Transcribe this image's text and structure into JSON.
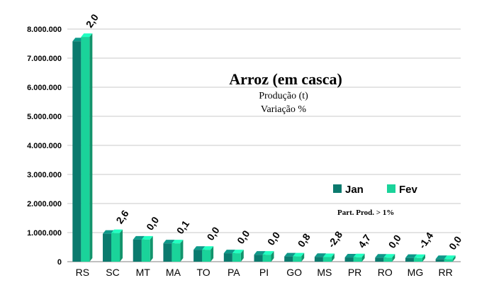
{
  "chart_data": {
    "type": "bar",
    "title": "Arroz (em casca)",
    "subtitle_lines": [
      "Produção (t)",
      "Variação %"
    ],
    "note": "Part. Prod. > 1%",
    "categories": [
      "RS",
      "SC",
      "MT",
      "MA",
      "TO",
      "PA",
      "PI",
      "GO",
      "MS",
      "PR",
      "RO",
      "MG",
      "RR"
    ],
    "series": [
      {
        "name": "Jan",
        "color": "#0b7a6e",
        "values": [
          7580000,
          960000,
          760000,
          630000,
          410000,
          290000,
          240000,
          180000,
          165000,
          145000,
          140000,
          130000,
          90000
        ]
      },
      {
        "name": "Fev",
        "color": "#1ad39a",
        "values": [
          7730000,
          985000,
          760000,
          630000,
          410000,
          290000,
          240000,
          181000,
          160000,
          152000,
          140000,
          128000,
          90000
        ]
      }
    ],
    "variation_labels": [
      "2,0",
      "2,6",
      "0,0",
      "0,1",
      "0,0",
      "0,0",
      "0,0",
      "0,8",
      "-2,8",
      "4,7",
      "0,0",
      "-1,4",
      "0,0"
    ],
    "y_ticks": [
      0,
      1000000,
      2000000,
      3000000,
      4000000,
      5000000,
      6000000,
      7000000,
      8000000
    ],
    "y_tick_labels": [
      "0",
      "1.000.000",
      "2.000.000",
      "3.000.000",
      "4.000.000",
      "5.000.000",
      "6.000.000",
      "7.000.000",
      "8.000.000"
    ],
    "ylim": [
      0,
      8000000
    ],
    "grid": true,
    "legend_position": "right-middle",
    "xlabel": "",
    "ylabel": ""
  }
}
